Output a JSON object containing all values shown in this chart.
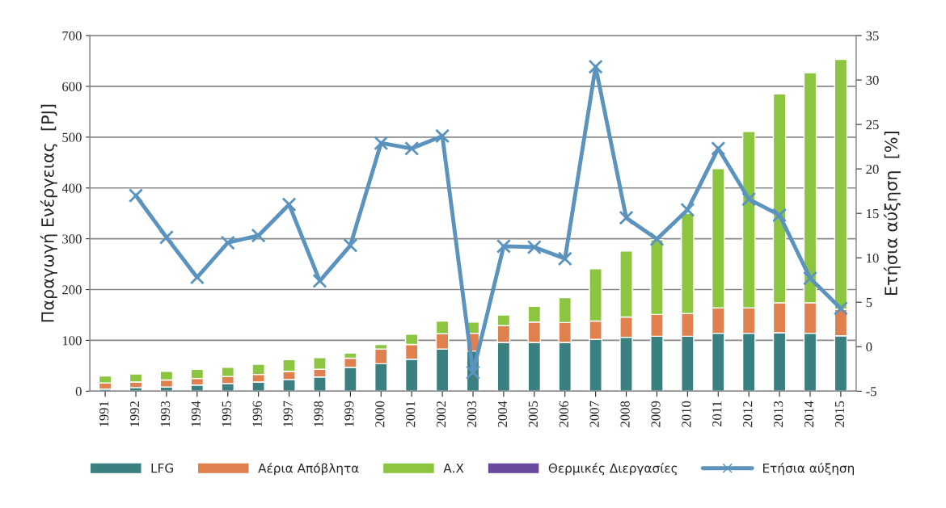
{
  "chart_data": {
    "type": "bar",
    "stacked": true,
    "categories": [
      "1991",
      "1992",
      "1993",
      "1994",
      "1995",
      "1996",
      "1997",
      "1998",
      "1999",
      "2000",
      "2001",
      "2002",
      "2003",
      "2004",
      "2005",
      "2006",
      "2007",
      "2008",
      "2009",
      "2010",
      "2011",
      "2012",
      "2013",
      "2014",
      "2015"
    ],
    "ylabel": "Παραγωγή Ενέργειας  [PJ]",
    "y2label": "Ετήσια αύξηση  [%]",
    "ylim": [
      0,
      700
    ],
    "yticks": [
      0,
      100,
      200,
      300,
      400,
      500,
      600,
      700
    ],
    "y2lim": [
      -5,
      35
    ],
    "y2ticks": [
      -5,
      0,
      5,
      10,
      15,
      20,
      25,
      30,
      35
    ],
    "grid": "y",
    "legend": "bottom",
    "series": [
      {
        "name": "LFG",
        "color": "#3b8080",
        "values": [
          4,
          7,
          8,
          12,
          15,
          18,
          23,
          28,
          47,
          54,
          63,
          83,
          79,
          96,
          96,
          96,
          102,
          106,
          108,
          108,
          114,
          114,
          115,
          114,
          109
        ]
      },
      {
        "name": "Αέρια Απόβλητα",
        "color": "#e0804f",
        "values": [
          12,
          11,
          14,
          13,
          14,
          15,
          16,
          15,
          18,
          29,
          29,
          30,
          35,
          33,
          40,
          39,
          36,
          40,
          43,
          45,
          50,
          50,
          59,
          60,
          52
        ]
      },
      {
        "name": "Α.Χ",
        "color": "#8cc540",
        "values": [
          14,
          16,
          17,
          18,
          18,
          20,
          23,
          23,
          10,
          9,
          20,
          25,
          22,
          21,
          31,
          49,
          103,
          130,
          147,
          197,
          274,
          347,
          411,
          453,
          492
        ]
      },
      {
        "name": "Θερμικές Διεργασίες",
        "color": "#6a4a9c",
        "values": [
          null,
          null,
          null,
          null,
          null,
          null,
          null,
          null,
          null,
          null,
          null,
          null,
          null,
          null,
          null,
          null,
          null,
          null,
          null,
          null,
          null,
          null,
          null,
          null,
          null
        ]
      },
      {
        "name": "Ετήσια αύξηση",
        "type": "line",
        "axis": "y2",
        "color": "#5b93bf",
        "marker": "cross",
        "line_style": "solid",
        "values": [
          null,
          17.0,
          12.3,
          7.8,
          11.7,
          12.5,
          16.0,
          7.4,
          11.4,
          22.9,
          22.3,
          23.7,
          -2.9,
          11.3,
          11.2,
          9.9,
          31.5,
          14.5,
          12.1,
          15.4,
          22.3,
          16.6,
          14.8,
          7.7,
          4.3
        ]
      }
    ]
  }
}
